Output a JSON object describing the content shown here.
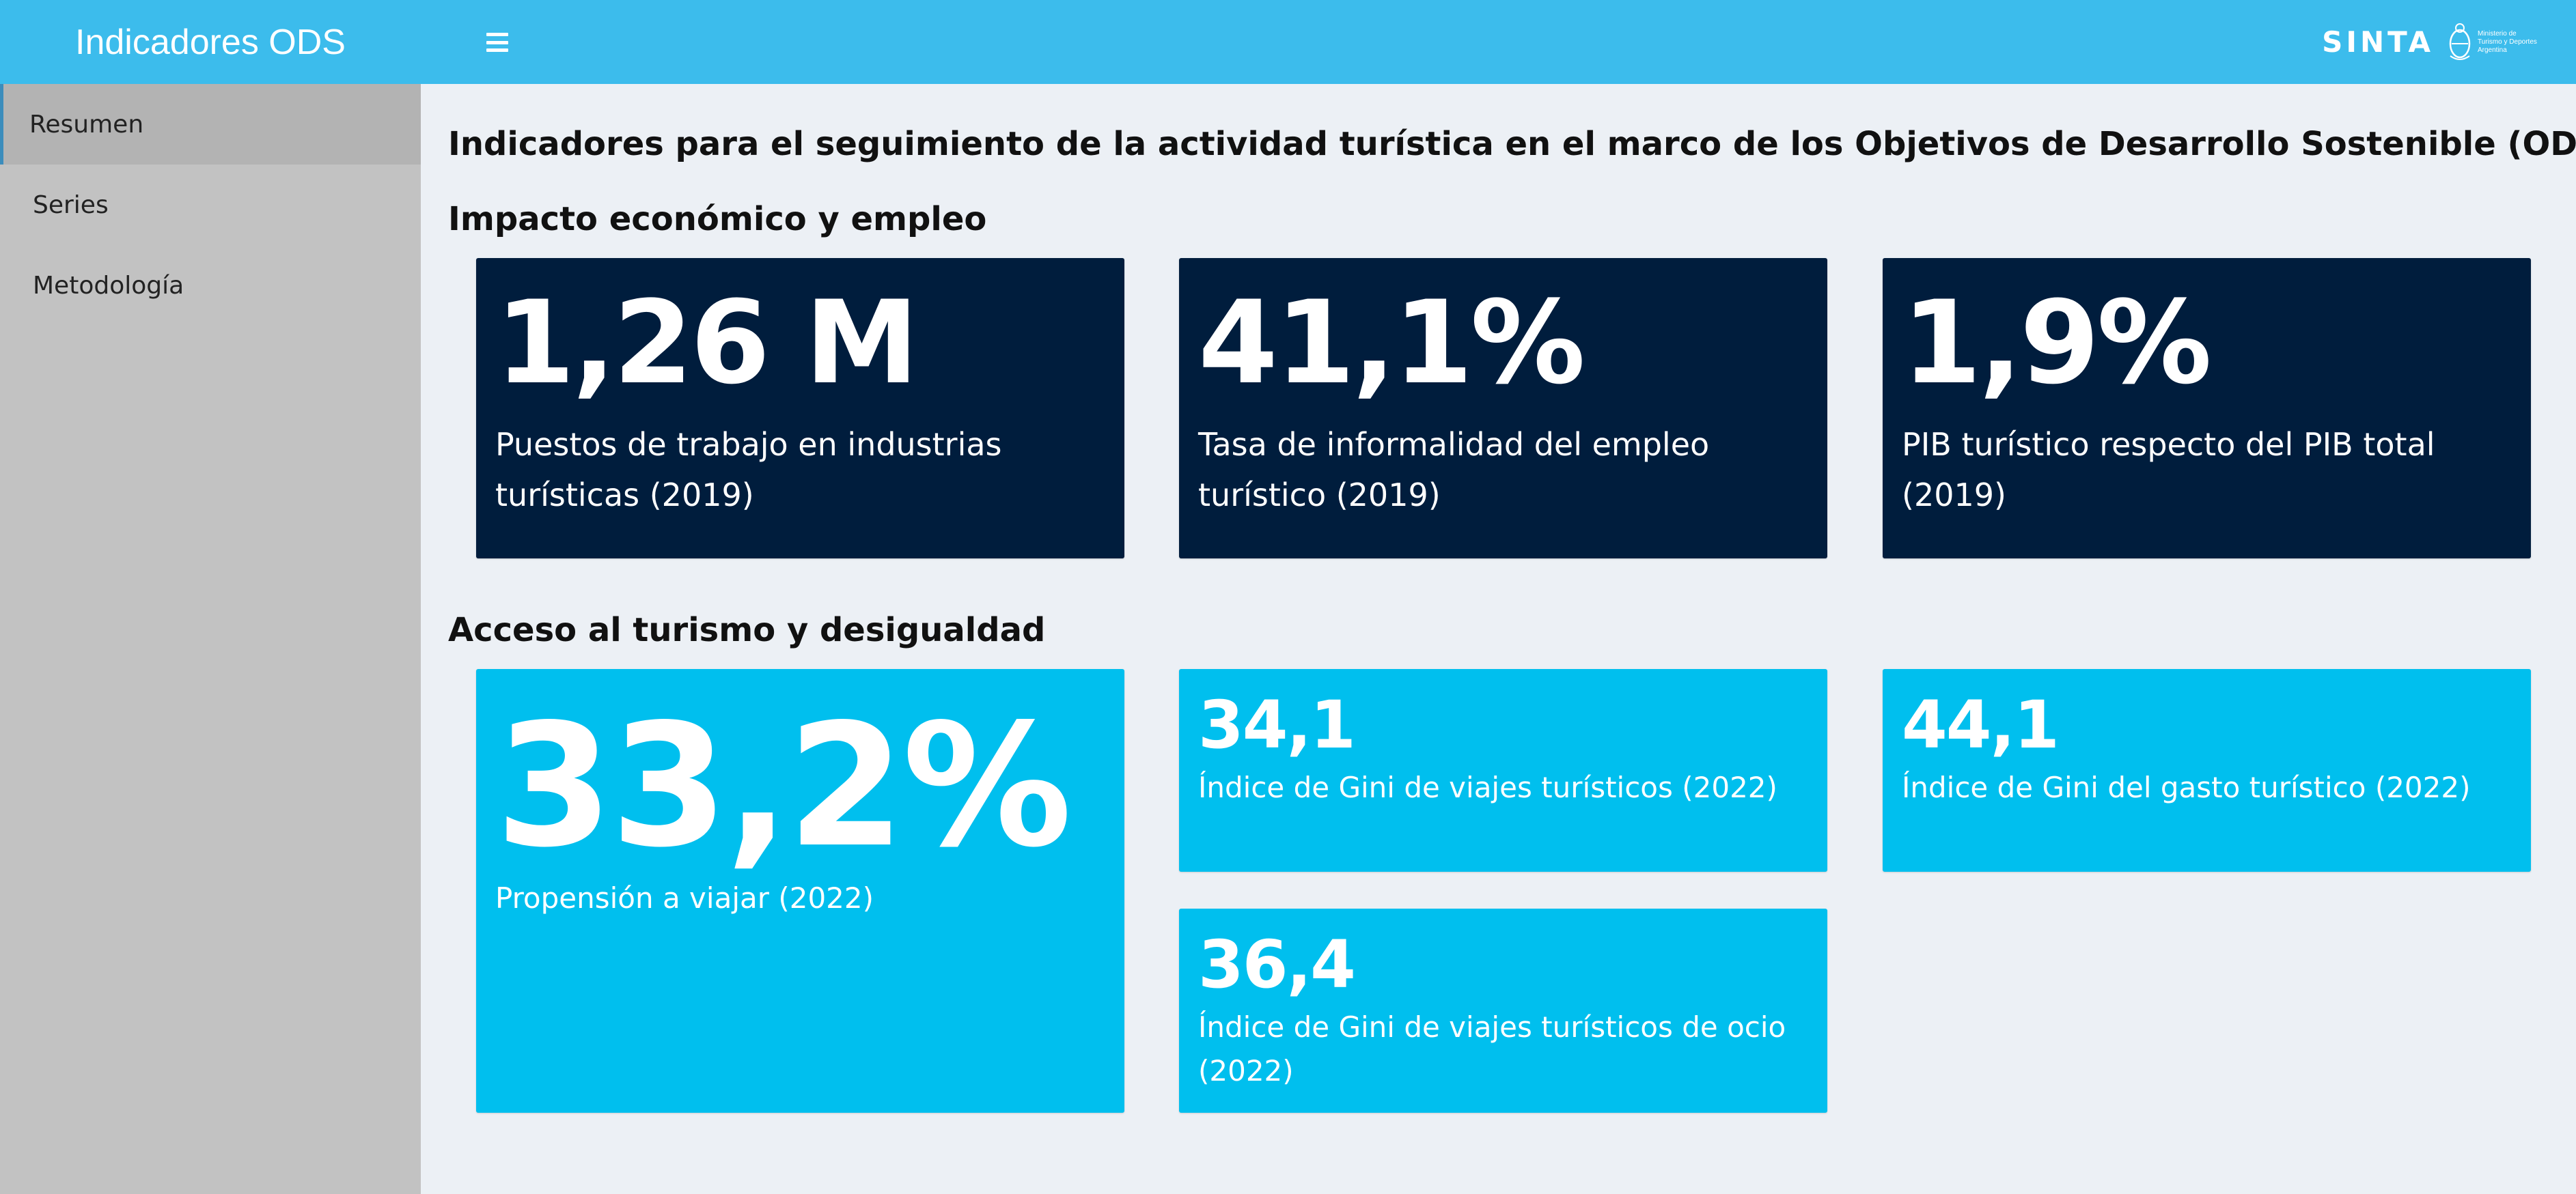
{
  "header": {
    "app_title": "Indicadores ODS",
    "menu_icon": "hamburger-icon",
    "brand": "SINTA",
    "ministry_logo_lines": [
      "Ministerio de",
      "Turismo y Deportes",
      "Argentina"
    ],
    "background_color": "#3cbcec"
  },
  "sidebar": {
    "items": [
      {
        "label": "Resumen",
        "active": true
      },
      {
        "label": "Series",
        "active": false
      },
      {
        "label": "Metodología",
        "active": false
      }
    ]
  },
  "main": {
    "page_title": "Indicadores para el seguimiento de la actividad turística en el marco de los Objetivos de Desarrollo Sostenible (ODS)",
    "sections": [
      {
        "title": "Impacto económico y empleo",
        "cards": [
          {
            "value": "1,26 M",
            "description": "Puestos de trabajo en industrias turísticas (2019)"
          },
          {
            "value": "41,1%",
            "description": "Tasa de informalidad del empleo turístico (2019)"
          },
          {
            "value": "1,9%",
            "description": "PIB turístico respecto del PIB total (2019)"
          }
        ]
      },
      {
        "title": "Acceso al turismo y desigualdad",
        "cards": [
          {
            "value": "33,2%",
            "description": "Propensión a viajar (2022)"
          },
          {
            "value": "34,1",
            "description": "Índice de Gini de viajes turísticos (2022)"
          },
          {
            "value": "44,1",
            "description": "Índice de Gini del gasto turístico (2022)"
          },
          {
            "value": "36,4",
            "description": "Índice de Gini de viajes turísticos de ocio (2022)"
          }
        ]
      }
    ]
  },
  "colors": {
    "dark_card": "#001d3d",
    "light_card": "#00bfee",
    "sidebar": "#c2c2c2",
    "content_background": "#ecf0f5"
  }
}
